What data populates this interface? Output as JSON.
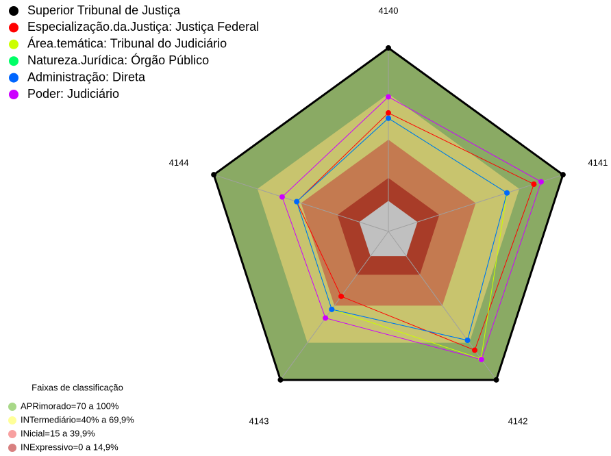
{
  "chart_data": {
    "type": "radar",
    "categories": [
      "4140",
      "4141",
      "4142",
      "4143",
      "4144"
    ],
    "ylim": [
      -20,
      100
    ],
    "series": [
      {
        "name": "Superior Tribunal de Justiça",
        "color": "#000000",
        "values": [
          100,
          100,
          100,
          100,
          100
        ]
      },
      {
        "name": "Especialização.da.Justiça: Justiça Federal",
        "color": "#ff0000",
        "values": [
          57.5,
          80,
          76,
          32.5,
          43
        ]
      },
      {
        "name": "Área.temática: Tribunal do Judiciário",
        "color": "#ccff00",
        "values": [
          54,
          61.5,
          83,
          43,
          43
        ]
      },
      {
        "name": "Natureza.Jurídica: Órgão Público",
        "color": "#00ff66",
        "values": [
          54,
          61.5,
          68,
          43,
          43
        ]
      },
      {
        "name": "Administração: Direta",
        "color": "#0066ff",
        "values": [
          54,
          61.5,
          68,
          43,
          43
        ]
      },
      {
        "name": "Poder: Judiciário",
        "color": "#cc00ff",
        "values": [
          68,
          85,
          83.5,
          50,
          53
        ]
      }
    ],
    "bands_title": "Faixas de classificação",
    "bands": [
      {
        "label": "INExpressivo=0 a 14,9%",
        "from": 0,
        "to": 15,
        "color": "#a83c28",
        "legend_color": "#d88080"
      },
      {
        "label": "INicial=15 a 39,9%",
        "from": 15,
        "to": 40,
        "color": "#c47a50",
        "legend_color": "#f8a0a0"
      },
      {
        "label": "INTermediário=40% a 69,9%",
        "from": 40,
        "to": 70,
        "color": "#c8c46e",
        "legend_color": "#ffff99"
      },
      {
        "label": "APRimorado=70 a 100%",
        "from": 70,
        "to": 100,
        "color": "#8aaa64",
        "legend_color": "#a8d888"
      }
    ],
    "inner_color": "#c0c0c0"
  }
}
